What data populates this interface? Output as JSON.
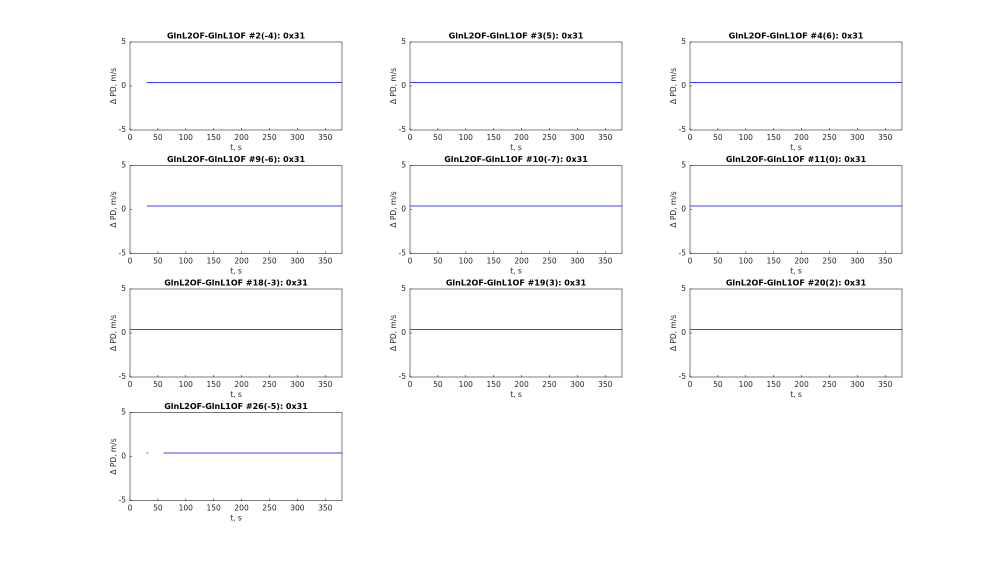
{
  "chart_data": [
    {
      "type": "line",
      "title": "GlnL2OF-GlnL1OF #2(-4): 0x31",
      "xlabel": "t, s",
      "ylabel": "Δ PD, m/s",
      "x": [
        30,
        100,
        200,
        300,
        380
      ],
      "series": [
        {
          "color": "#0000ff",
          "values": [
            0.4,
            0.4,
            0.4,
            0.4,
            0.4
          ]
        }
      ],
      "xlim": [
        0,
        380
      ],
      "ylim": [
        -5,
        5
      ],
      "xticks": [
        0,
        50,
        100,
        150,
        200,
        250,
        300,
        350
      ],
      "yticks": [
        -5,
        0,
        5
      ]
    },
    {
      "type": "line",
      "title": "GlnL2OF-GlnL1OF #3(5): 0x31",
      "xlabel": "t, s",
      "ylabel": "Δ PD, m/s",
      "x": [
        0,
        100,
        200,
        300,
        380
      ],
      "series": [
        {
          "color": "#0000ff",
          "values": [
            0.4,
            0.4,
            0.4,
            0.4,
            0.4
          ]
        }
      ],
      "xlim": [
        0,
        380
      ],
      "ylim": [
        -5,
        5
      ],
      "xticks": [
        0,
        50,
        100,
        150,
        200,
        250,
        300,
        350
      ],
      "yticks": [
        -5,
        0,
        5
      ]
    },
    {
      "type": "line",
      "title": "GlnL2OF-GlnL1OF #4(6): 0x31",
      "xlabel": "t, s",
      "ylabel": "Δ PD, m/s",
      "x": [
        0,
        100,
        200,
        300,
        380
      ],
      "series": [
        {
          "color": "#0000ff",
          "values": [
            0.4,
            0.4,
            0.4,
            0.4,
            0.4
          ]
        }
      ],
      "xlim": [
        0,
        380
      ],
      "ylim": [
        -5,
        5
      ],
      "xticks": [
        0,
        50,
        100,
        150,
        200,
        250,
        300,
        350
      ],
      "yticks": [
        -5,
        0,
        5
      ]
    },
    {
      "type": "line",
      "title": "GlnL2OF-GlnL1OF #9(-6): 0x31",
      "xlabel": "t, s",
      "ylabel": "Δ PD, m/s",
      "x": [
        30,
        100,
        200,
        300,
        380
      ],
      "series": [
        {
          "color": "#0000ff",
          "values": [
            0.4,
            0.4,
            0.4,
            0.4,
            0.4
          ]
        }
      ],
      "xlim": [
        0,
        380
      ],
      "ylim": [
        -5,
        5
      ],
      "xticks": [
        0,
        50,
        100,
        150,
        200,
        250,
        300,
        350
      ],
      "yticks": [
        -5,
        0,
        5
      ]
    },
    {
      "type": "line",
      "title": "GlnL2OF-GlnL1OF #10(-7): 0x31",
      "xlabel": "t, s",
      "ylabel": "Δ PD, m/s",
      "x": [
        0,
        100,
        200,
        300,
        380
      ],
      "series": [
        {
          "color": "#0000ff",
          "values": [
            0.4,
            0.4,
            0.4,
            0.4,
            0.4
          ]
        }
      ],
      "xlim": [
        0,
        380
      ],
      "ylim": [
        -5,
        5
      ],
      "xticks": [
        0,
        50,
        100,
        150,
        200,
        250,
        300,
        350
      ],
      "yticks": [
        -5,
        0,
        5
      ]
    },
    {
      "type": "line",
      "title": "GlnL2OF-GlnL1OF #11(0): 0x31",
      "xlabel": "t, s",
      "ylabel": "Δ PD, m/s",
      "x": [
        0,
        100,
        200,
        300,
        380
      ],
      "series": [
        {
          "color": "#0000ff",
          "values": [
            0.4,
            0.4,
            0.4,
            0.4,
            0.4
          ]
        }
      ],
      "xlim": [
        0,
        380
      ],
      "ylim": [
        -5,
        5
      ],
      "xticks": [
        0,
        50,
        100,
        150,
        200,
        250,
        300,
        350
      ],
      "yticks": [
        -5,
        0,
        5
      ]
    },
    {
      "type": "line",
      "title": "GlnL2OF-GlnL1OF #18(-3): 0x31",
      "xlabel": "t, s",
      "ylabel": "Δ PD, m/s",
      "x": [
        0,
        100,
        200,
        300,
        380
      ],
      "series": [
        {
          "color": "#0000ff",
          "values": [
            0.4,
            0.4,
            0.4,
            0.4,
            0.4
          ]
        }
      ],
      "xlim": [
        0,
        380
      ],
      "ylim": [
        -5,
        5
      ],
      "xticks": [
        0,
        50,
        100,
        150,
        200,
        250,
        300,
        350
      ],
      "yticks": [
        -5,
        0,
        5
      ]
    },
    {
      "type": "line",
      "title": "GlnL2OF-GlnL1OF #19(3): 0x31",
      "xlabel": "t, s",
      "ylabel": "Δ PD, m/s",
      "x": [
        0,
        100,
        200,
        300,
        380
      ],
      "series": [
        {
          "color": "#0000ff",
          "values": [
            0.4,
            0.4,
            0.4,
            0.4,
            0.4
          ]
        }
      ],
      "xlim": [
        0,
        380
      ],
      "ylim": [
        -5,
        5
      ],
      "xticks": [
        0,
        50,
        100,
        150,
        200,
        250,
        300,
        350
      ],
      "yticks": [
        -5,
        0,
        5
      ]
    },
    {
      "type": "line",
      "title": "GlnL2OF-GlnL1OF #20(2): 0x31",
      "xlabel": "t, s",
      "ylabel": "Δ PD, m/s",
      "x": [
        0,
        100,
        200,
        300,
        380
      ],
      "series": [
        {
          "color": "#0000ff",
          "values": [
            0.4,
            0.4,
            0.4,
            0.4,
            0.4
          ]
        }
      ],
      "xlim": [
        0,
        380
      ],
      "ylim": [
        -5,
        5
      ],
      "xticks": [
        0,
        50,
        100,
        150,
        200,
        250,
        300,
        350
      ],
      "yticks": [
        -5,
        0,
        5
      ]
    },
    {
      "type": "line",
      "title": "GlnL2OF-GlnL1OF #26(-5): 0x31",
      "xlabel": "t, s",
      "ylabel": "Δ PD, m/s",
      "x": [
        30,
        45,
        60,
        150,
        250,
        380
      ],
      "series": [
        {
          "color": "#0000ff",
          "values": [
            0.4,
            null,
            0.4,
            0.4,
            0.4,
            0.4
          ]
        }
      ],
      "xlim": [
        0,
        380
      ],
      "ylim": [
        -5,
        5
      ],
      "xticks": [
        0,
        50,
        100,
        150,
        200,
        250,
        300,
        350
      ],
      "yticks": [
        -5,
        0,
        5
      ]
    }
  ]
}
